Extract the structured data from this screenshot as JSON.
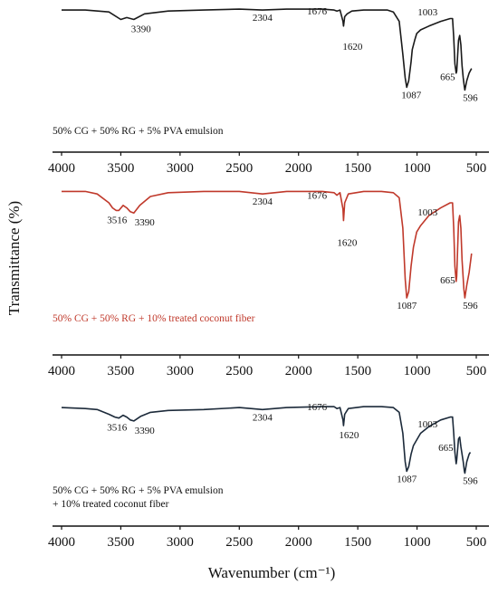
{
  "figure": {
    "ylabel": "Transmittance (%)",
    "xlabel": "Wavenumber (cm⁻¹)"
  },
  "chart_data": [
    {
      "type": "line",
      "title": "",
      "xlabel": "",
      "ylabel": "",
      "x_ticks": [
        4000,
        3500,
        3000,
        2500,
        2000,
        1500,
        1000,
        500
      ],
      "xlim": [
        4000,
        500
      ],
      "ylim": [
        0,
        100
      ],
      "series": [
        {
          "name": "50% CG + 50% RG + 5% PVA emulsion",
          "color": "#1a1a1a",
          "points": [
            [
              4000,
              97
            ],
            [
              3800,
              97
            ],
            [
              3600,
              95
            ],
            [
              3500,
              87
            ],
            [
              3450,
              89
            ],
            [
              3390,
              87
            ],
            [
              3300,
              93
            ],
            [
              3100,
              96
            ],
            [
              2800,
              97
            ],
            [
              2500,
              98
            ],
            [
              2304,
              97
            ],
            [
              2100,
              98
            ],
            [
              1800,
              98
            ],
            [
              1700,
              97
            ],
            [
              1676,
              96
            ],
            [
              1650,
              97
            ],
            [
              1625,
              85
            ],
            [
              1620,
              80
            ],
            [
              1610,
              90
            ],
            [
              1590,
              93
            ],
            [
              1550,
              96
            ],
            [
              1450,
              97
            ],
            [
              1350,
              97
            ],
            [
              1250,
              97
            ],
            [
              1200,
              95
            ],
            [
              1150,
              85
            ],
            [
              1120,
              50
            ],
            [
              1100,
              25
            ],
            [
              1087,
              15
            ],
            [
              1070,
              22
            ],
            [
              1050,
              42
            ],
            [
              1040,
              55
            ],
            [
              1020,
              65
            ],
            [
              1003,
              72
            ],
            [
              970,
              76
            ],
            [
              900,
              80
            ],
            [
              800,
              85
            ],
            [
              720,
              88
            ],
            [
              700,
              88
            ],
            [
              690,
              68
            ],
            [
              680,
              40
            ],
            [
              670,
              30
            ],
            [
              665,
              32
            ],
            [
              650,
              65
            ],
            [
              640,
              70
            ],
            [
              630,
              60
            ],
            [
              620,
              38
            ],
            [
              610,
              25
            ],
            [
              600,
              15
            ],
            [
              596,
              12
            ],
            [
              580,
              22
            ],
            [
              560,
              30
            ],
            [
              540,
              35
            ]
          ],
          "peaks": [
            3390,
            2304,
            1676,
            1620,
            1087,
            1003,
            665,
            596
          ]
        },
        {
          "name": "50% CG + 50% RG + 10% treated coconut fiber",
          "color": "#c0392b",
          "points": [
            [
              4000,
              99
            ],
            [
              3800,
              99
            ],
            [
              3700,
              97
            ],
            [
              3600,
              90
            ],
            [
              3570,
              86
            ],
            [
              3540,
              84
            ],
            [
              3516,
              84
            ],
            [
              3480,
              88
            ],
            [
              3450,
              86
            ],
            [
              3420,
              83
            ],
            [
              3390,
              82
            ],
            [
              3340,
              88
            ],
            [
              3250,
              95
            ],
            [
              3100,
              98
            ],
            [
              2800,
              99
            ],
            [
              2500,
              99
            ],
            [
              2304,
              97
            ],
            [
              2100,
              99
            ],
            [
              1800,
              99
            ],
            [
              1700,
              98
            ],
            [
              1676,
              96
            ],
            [
              1650,
              98
            ],
            [
              1625,
              85
            ],
            [
              1620,
              76
            ],
            [
              1610,
              90
            ],
            [
              1580,
              97
            ],
            [
              1450,
              99
            ],
            [
              1300,
              99
            ],
            [
              1200,
              98
            ],
            [
              1150,
              94
            ],
            [
              1120,
              70
            ],
            [
              1100,
              30
            ],
            [
              1087,
              15
            ],
            [
              1070,
              20
            ],
            [
              1050,
              40
            ],
            [
              1030,
              55
            ],
            [
              1003,
              67
            ],
            [
              970,
              72
            ],
            [
              900,
              80
            ],
            [
              800,
              86
            ],
            [
              720,
              90
            ],
            [
              700,
              90
            ],
            [
              690,
              70
            ],
            [
              680,
              40
            ],
            [
              670,
              28
            ],
            [
              665,
              32
            ],
            [
              650,
              75
            ],
            [
              640,
              80
            ],
            [
              630,
              70
            ],
            [
              620,
              45
            ],
            [
              605,
              22
            ],
            [
              596,
              15
            ],
            [
              580,
              25
            ],
            [
              560,
              35
            ],
            [
              540,
              50
            ]
          ],
          "peaks": [
            3516,
            3390,
            2304,
            1676,
            1620,
            1087,
            1003,
            665,
            596
          ]
        },
        {
          "name": "50% CG + 50% RG + 5% PVA emulsion + 10% treated coconut fiber",
          "color": "#1c2a3a",
          "points": [
            [
              4000,
              97
            ],
            [
              3800,
              96
            ],
            [
              3700,
              95
            ],
            [
              3600,
              90
            ],
            [
              3550,
              87
            ],
            [
              3516,
              86
            ],
            [
              3480,
              89
            ],
            [
              3450,
              87
            ],
            [
              3420,
              84
            ],
            [
              3390,
              83
            ],
            [
              3330,
              88
            ],
            [
              3250,
              92
            ],
            [
              3100,
              94
            ],
            [
              2800,
              95
            ],
            [
              2500,
              97
            ],
            [
              2304,
              95
            ],
            [
              2100,
              97
            ],
            [
              1800,
              98
            ],
            [
              1700,
              98
            ],
            [
              1676,
              96
            ],
            [
              1650,
              97
            ],
            [
              1625,
              84
            ],
            [
              1620,
              78
            ],
            [
              1610,
              90
            ],
            [
              1580,
              96
            ],
            [
              1450,
              98
            ],
            [
              1300,
              98
            ],
            [
              1200,
              97
            ],
            [
              1150,
              92
            ],
            [
              1120,
              70
            ],
            [
              1100,
              40
            ],
            [
              1087,
              30
            ],
            [
              1070,
              35
            ],
            [
              1050,
              48
            ],
            [
              1030,
              57
            ],
            [
              1003,
              63
            ],
            [
              970,
              70
            ],
            [
              900,
              77
            ],
            [
              800,
              84
            ],
            [
              720,
              87
            ],
            [
              700,
              87
            ],
            [
              690,
              70
            ],
            [
              680,
              50
            ],
            [
              670,
              38
            ],
            [
              665,
              42
            ],
            [
              650,
              64
            ],
            [
              640,
              66
            ],
            [
              630,
              56
            ],
            [
              610,
              40
            ],
            [
              600,
              30
            ],
            [
              596,
              28
            ],
            [
              580,
              40
            ],
            [
              560,
              48
            ],
            [
              550,
              50
            ]
          ],
          "peaks": [
            3516,
            3390,
            2304,
            1676,
            1620,
            1087,
            1003,
            665,
            596
          ]
        }
      ]
    }
  ]
}
